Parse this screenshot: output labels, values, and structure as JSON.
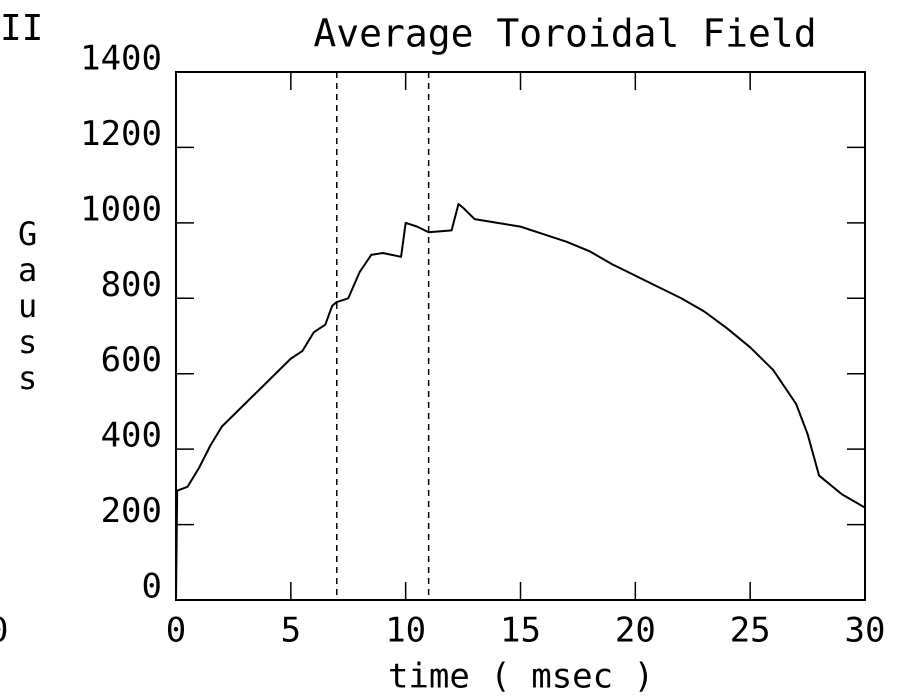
{
  "chart_data": {
    "type": "line",
    "title": "Average Toroidal Field",
    "xlabel": "time ( msec )",
    "ylabel": "Gauss",
    "annotations": [
      "II",
      "0"
    ],
    "x": [
      0,
      0.05,
      0.5,
      1,
      1.5,
      2,
      3,
      4,
      5,
      5.5,
      6,
      6.5,
      6.8,
      7,
      7.5,
      8,
      8.5,
      9,
      9.8,
      10,
      10.5,
      11,
      12,
      12.3,
      12.5,
      13,
      14,
      15,
      16,
      17,
      18,
      19,
      20,
      21,
      22,
      23,
      24,
      25,
      26,
      27,
      27.5,
      28,
      29,
      30
    ],
    "series": [
      {
        "name": "Average Toroidal Field",
        "color": "#000000",
        "values": [
          0,
          290,
          300,
          350,
          410,
          460,
          520,
          580,
          640,
          660,
          710,
          730,
          780,
          790,
          800,
          870,
          915,
          920,
          910,
          1000,
          990,
          975,
          980,
          1050,
          1040,
          1010,
          1000,
          990,
          970,
          950,
          925,
          890,
          860,
          830,
          800,
          765,
          720,
          670,
          610,
          520,
          440,
          330,
          280,
          245
        ]
      }
    ],
    "vlines": [
      7,
      11
    ],
    "xlim": [
      0,
      30
    ],
    "xticks": [
      0,
      5,
      10,
      15,
      20,
      25,
      30
    ],
    "ylim": [
      0,
      1400
    ],
    "yticks": [
      0,
      200,
      400,
      600,
      800,
      1000,
      1200,
      1400
    ]
  }
}
